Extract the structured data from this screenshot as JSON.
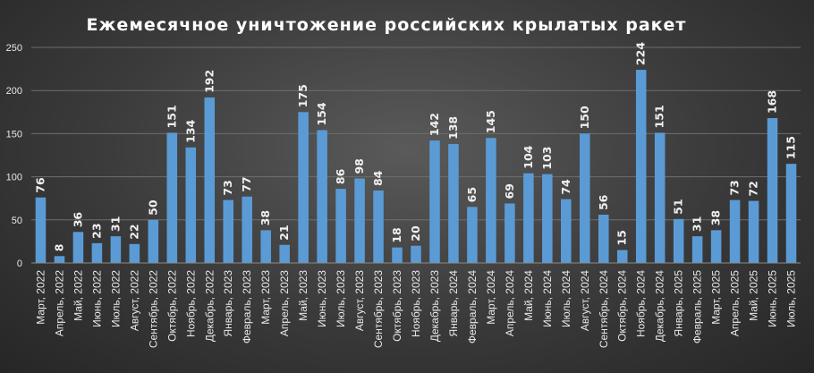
{
  "chart_data": {
    "type": "bar",
    "title": "Ежемесячное  уничтожение  российских  крылатых  ракет",
    "xlabel": "",
    "ylabel": "",
    "ylim": [
      0,
      250
    ],
    "yticks": [
      0,
      50,
      100,
      150,
      200,
      250
    ],
    "grid": true,
    "bar_color": "#5b9bd5",
    "categories": [
      "Март, 2022",
      "Апрель, 2022",
      "Май, 2022",
      "Июнь, 2022",
      "Июль, 2022",
      "Август, 2022",
      "Сентябрь, 2022",
      "Октябрь, 2022",
      "Ноябрь, 2022",
      "Декабрь, 2022",
      "Январь, 2023",
      "Февраль, 2023",
      "Март, 2023",
      "Апрель, 2023",
      "Май, 2023",
      "Июнь, 2023",
      "Июль, 2023",
      "Август, 2023",
      "Сентябрь, 2023",
      "Октябрь, 2023",
      "Ноябрь, 2023",
      "Декабрь, 2023",
      "Январь, 2024",
      "Февраль, 2024",
      "Март, 2024",
      "Апрель, 2024",
      "Май, 2024",
      "Июнь, 2024",
      "Июль, 2024",
      "Август, 2024",
      "Сентябрь, 2024",
      "Октябрь, 2024",
      "Ноябрь, 2024",
      "Декабрь, 2024",
      "Январь, 2025",
      "Февраль, 2025",
      "Март, 2025",
      "Апрель, 2025",
      "Май, 2025",
      "Июнь, 2025",
      "Июль, 2025"
    ],
    "values": [
      76,
      8,
      36,
      23,
      31,
      22,
      50,
      151,
      134,
      192,
      73,
      77,
      38,
      21,
      175,
      154,
      86,
      98,
      84,
      18,
      20,
      142,
      138,
      65,
      145,
      69,
      104,
      103,
      74,
      150,
      56,
      15,
      224,
      151,
      51,
      31,
      38,
      73,
      72,
      168,
      115
    ]
  }
}
